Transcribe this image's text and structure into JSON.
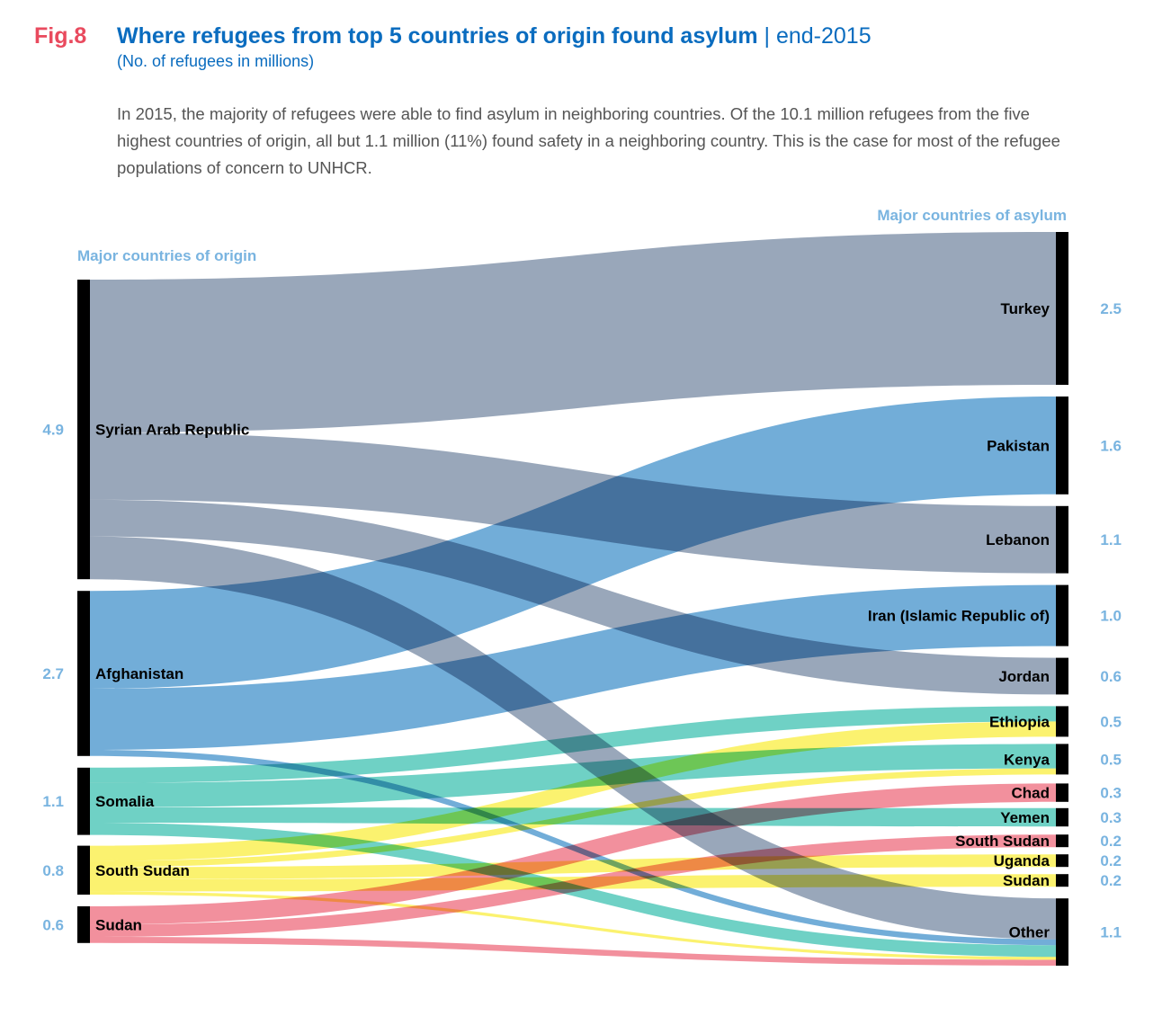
{
  "header": {
    "fig_label": "Fig.8",
    "title_bold": "Where refugees from top 5 countries of origin found asylum",
    "title_suffix": " | end-2015",
    "subtitle": "(No. of refugees in millions)",
    "description": "In 2015, the majority of refugees were able to find asylum in neighboring countries. Of the 10.1 million refugees from the five highest countries of origin, all but 1.1 million (11%) found safety in a neighboring country. This is the case for most of the refugee populations of concern to UNHCR."
  },
  "colors": {
    "fig_label": "#e94a5e",
    "title": "#0a6cbf",
    "header_label": "#79b4e0",
    "node_bar": "#000000"
  },
  "chart_data": {
    "type": "sankey",
    "title": "Where refugees from top 5 countries of origin found asylum | end-2015",
    "unit": "millions",
    "left_header": "Major countries of origin",
    "right_header": "Major countries of asylum",
    "origins": [
      {
        "name": "Syrian Arab Republic",
        "value": 4.9,
        "value_label": "4.9",
        "color": "#8b9bb0"
      },
      {
        "name": "Afghanistan",
        "value": 2.7,
        "value_label": "2.7",
        "color": "#5ea2d3"
      },
      {
        "name": "Somalia",
        "value": 1.1,
        "value_label": "1.1",
        "color": "#5bcbbd"
      },
      {
        "name": "South Sudan",
        "value": 0.8,
        "value_label": "0.8",
        "color": "#fbf05b"
      },
      {
        "name": "Sudan",
        "value": 0.6,
        "value_label": "0.6",
        "color": "#f08190"
      }
    ],
    "destinations": [
      {
        "name": "Turkey",
        "value": 2.5,
        "value_label": "2.5"
      },
      {
        "name": "Pakistan",
        "value": 1.6,
        "value_label": "1.6"
      },
      {
        "name": "Lebanon",
        "value": 1.1,
        "value_label": "1.1"
      },
      {
        "name": "Iran (Islamic Republic of)",
        "value": 1.0,
        "value_label": "1.0"
      },
      {
        "name": "Jordan",
        "value": 0.6,
        "value_label": "0.6"
      },
      {
        "name": "Ethiopia",
        "value": 0.5,
        "value_label": "0.5"
      },
      {
        "name": "Kenya",
        "value": 0.5,
        "value_label": "0.5"
      },
      {
        "name": "Chad",
        "value": 0.3,
        "value_label": "0.3"
      },
      {
        "name": "Yemen",
        "value": 0.3,
        "value_label": "0.3"
      },
      {
        "name": "South Sudan",
        "value": 0.2,
        "value_label": "0.2"
      },
      {
        "name": "Uganda",
        "value": 0.2,
        "value_label": "0.2"
      },
      {
        "name": "Sudan",
        "value": 0.2,
        "value_label": "0.2"
      },
      {
        "name": "Other",
        "value": 1.1,
        "value_label": "1.1"
      }
    ],
    "flows": [
      {
        "from": "Syrian Arab Republic",
        "to": "Turkey",
        "value": 2.5
      },
      {
        "from": "Syrian Arab Republic",
        "to": "Lebanon",
        "value": 1.1
      },
      {
        "from": "Syrian Arab Republic",
        "to": "Jordan",
        "value": 0.6
      },
      {
        "from": "Syrian Arab Republic",
        "to": "Other",
        "value": 0.7
      },
      {
        "from": "Afghanistan",
        "to": "Pakistan",
        "value": 1.6
      },
      {
        "from": "Afghanistan",
        "to": "Iran (Islamic Republic of)",
        "value": 1.0
      },
      {
        "from": "Afghanistan",
        "to": "Other",
        "value": 0.1
      },
      {
        "from": "Somalia",
        "to": "Ethiopia",
        "value": 0.25
      },
      {
        "from": "Somalia",
        "to": "Kenya",
        "value": 0.4
      },
      {
        "from": "Somalia",
        "to": "Yemen",
        "value": 0.25
      },
      {
        "from": "Somalia",
        "to": "Other",
        "value": 0.2
      },
      {
        "from": "South Sudan",
        "to": "Ethiopia",
        "value": 0.25
      },
      {
        "from": "South Sudan",
        "to": "Kenya",
        "value": 0.1
      },
      {
        "from": "South Sudan",
        "to": "Uganda",
        "value": 0.2
      },
      {
        "from": "South Sudan",
        "to": "Sudan",
        "value": 0.2
      },
      {
        "from": "South Sudan",
        "to": "Other",
        "value": 0.05
      },
      {
        "from": "Sudan",
        "to": "Chad",
        "value": 0.3
      },
      {
        "from": "Sudan",
        "to": "South Sudan",
        "value": 0.2
      },
      {
        "from": "Sudan",
        "to": "Other",
        "value": 0.1
      }
    ]
  }
}
